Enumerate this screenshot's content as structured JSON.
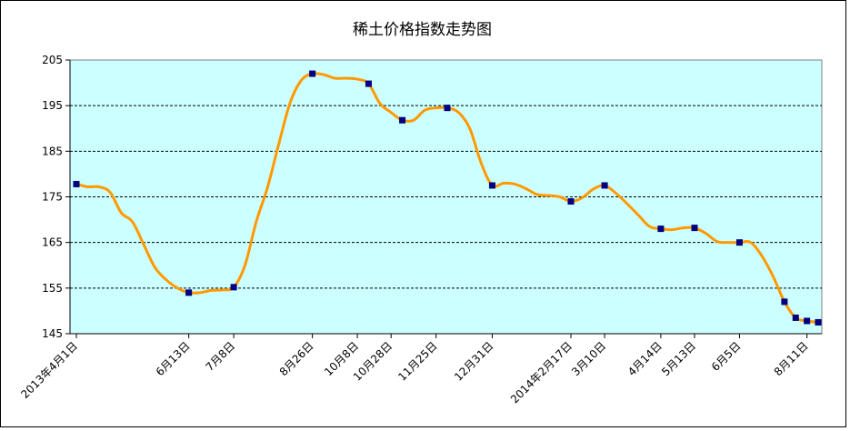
{
  "chart_data": {
    "type": "line",
    "title": "稀土价格指数走势图",
    "xlabel": "",
    "ylabel": "",
    "ylim": [
      145,
      205
    ],
    "yticks": [
      145,
      155,
      165,
      175,
      185,
      195,
      205
    ],
    "grid": true,
    "legend": "none",
    "colors": {
      "line": "#FF9900",
      "marker": "#000080",
      "plot_background": "#CCFFFF",
      "grid": "#000000"
    },
    "x_tick_labels": [
      {
        "i": 0,
        "label": "2013年4月1日"
      },
      {
        "i": 10,
        "label": "6月13日"
      },
      {
        "i": 14,
        "label": "7月8日"
      },
      {
        "i": 21,
        "label": "8月26日"
      },
      {
        "i": 25,
        "label": "10月8日"
      },
      {
        "i": 28,
        "label": "10月28日"
      },
      {
        "i": 32,
        "label": "11月25日"
      },
      {
        "i": 37,
        "label": "12月31日"
      },
      {
        "i": 44,
        "label": "2014年2月17日"
      },
      {
        "i": 47,
        "label": "3月10日"
      },
      {
        "i": 52,
        "label": "4月14日"
      },
      {
        "i": 55,
        "label": "5月13日"
      },
      {
        "i": 59,
        "label": "6月5日"
      },
      {
        "i": 65,
        "label": "8月11日"
      }
    ],
    "markers": [
      0,
      10,
      14,
      21,
      26,
      29,
      33,
      37,
      44,
      47,
      52,
      55,
      59,
      63,
      64,
      65,
      66
    ],
    "values": [
      177.8,
      177.2,
      177.2,
      176.0,
      171.5,
      169.5,
      164.5,
      159.5,
      156.8,
      155.0,
      154.0,
      154.0,
      154.5,
      154.6,
      155.2,
      160.0,
      169.5,
      177.0,
      186.5,
      195.5,
      200.5,
      202.0,
      201.8,
      201.0,
      201.0,
      200.8,
      199.8,
      195.5,
      193.5,
      191.8,
      191.8,
      194.0,
      194.5,
      194.5,
      193.5,
      190.0,
      182.5,
      177.5,
      178.0,
      177.8,
      176.8,
      175.5,
      175.3,
      175.0,
      174.0,
      174.8,
      176.7,
      177.5,
      175.8,
      173.5,
      171.0,
      168.5,
      168.0,
      167.8,
      168.2,
      168.2,
      167.0,
      165.2,
      165.0,
      165.0,
      165.0,
      162.0,
      157.5,
      152.0,
      148.5,
      147.8,
      147.5
    ]
  }
}
